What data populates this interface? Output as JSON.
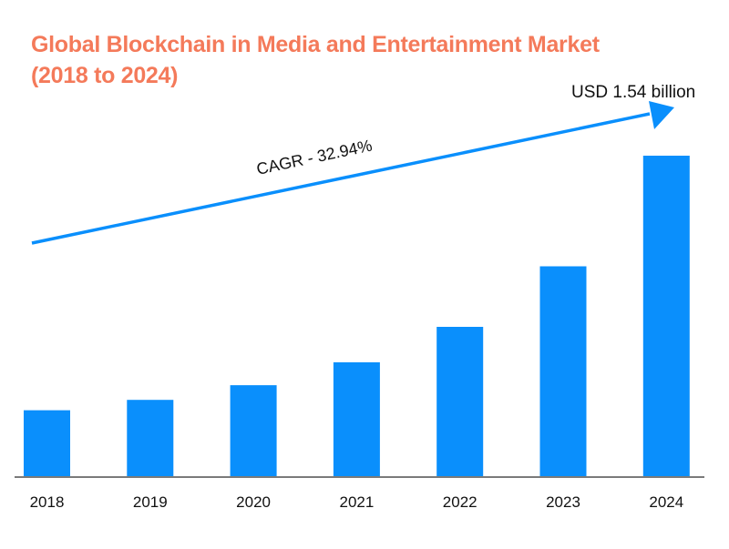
{
  "chart_data": {
    "type": "bar",
    "title": "Global Blockchain in Media and Entertainment Market",
    "subtitle": "(2018 to 2024)",
    "categories": [
      "2018",
      "2019",
      "2020",
      "2021",
      "2022",
      "2023",
      "2024"
    ],
    "values": [
      0.32,
      0.37,
      0.44,
      0.55,
      0.72,
      1.01,
      1.54
    ],
    "unit": "USD billion",
    "xlabel": "",
    "ylabel": "",
    "ylim": [
      0,
      1.6
    ],
    "grid": false,
    "legend": "none",
    "bar_color": "#0a8ffc",
    "title_color": "#f47a5a",
    "annotations": {
      "cagr_label": "CAGR - 32.94%",
      "end_value_label": "USD 1.54 billion",
      "trend_arrow_color": "#0a8ffc"
    }
  }
}
